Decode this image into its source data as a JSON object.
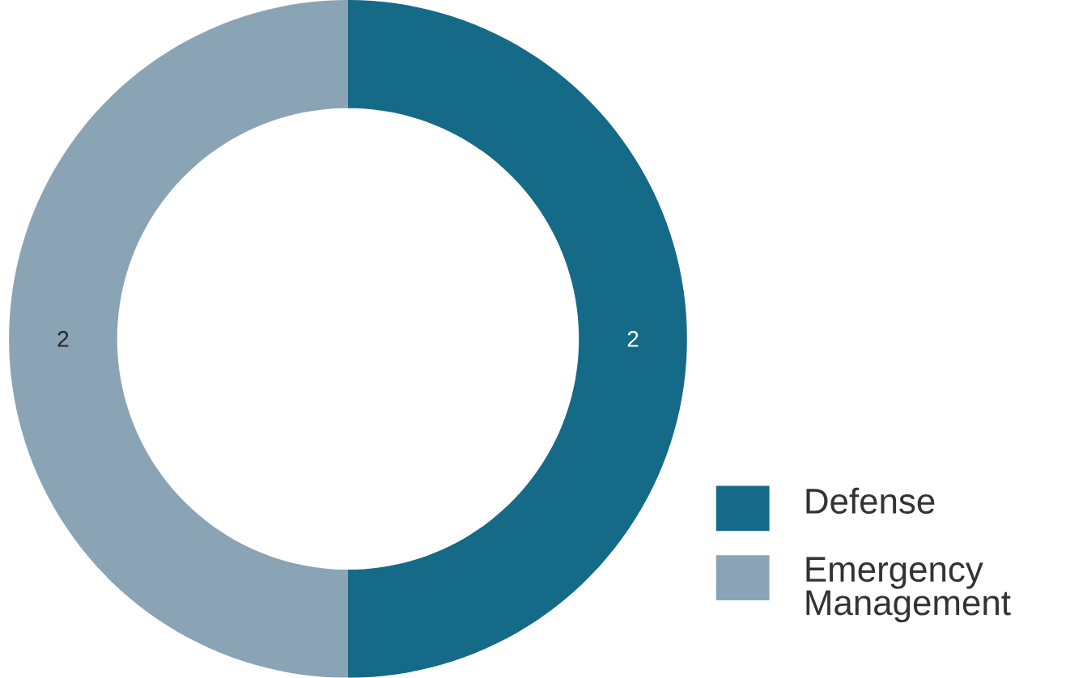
{
  "chart_data": {
    "type": "donut",
    "categories": [
      "Defense",
      "Emergency Management"
    ],
    "values": [
      2,
      2
    ],
    "colors": [
      "#156a87",
      "#8aa4b5"
    ],
    "data_labels": true,
    "legend": "bottom right"
  }
}
